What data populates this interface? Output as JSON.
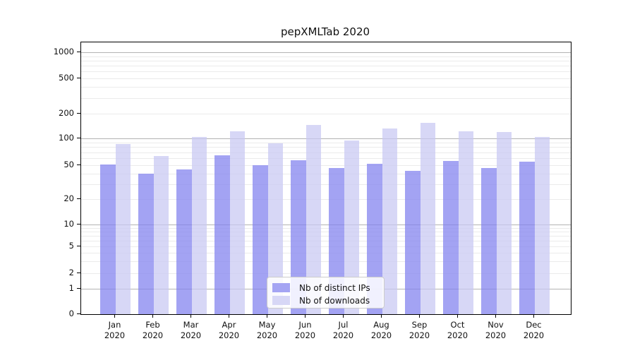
{
  "title": "pepXMLTab 2020",
  "chart_data": {
    "type": "bar",
    "title": "pepXMLTab 2020",
    "categories": [
      "Jan",
      "Feb",
      "Mar",
      "Apr",
      "May",
      "Jun",
      "Jul",
      "Aug",
      "Sep",
      "Oct",
      "Nov",
      "Dec"
    ],
    "x_year": "2020",
    "series": [
      {
        "name": "Nb of distinct IPs",
        "values": [
          51,
          40,
          45,
          65,
          50,
          57,
          46,
          52,
          43,
          56,
          46,
          55
        ],
        "bar_fill": "rgba(128,128,238,0.72)",
        "legend_color": "#a4a4f3"
      },
      {
        "name": "Nb of downloads",
        "values": [
          86,
          63,
          105,
          122,
          88,
          145,
          95,
          132,
          155,
          121,
          119,
          104
        ],
        "bar_fill": "rgba(200,200,243,0.72)",
        "legend_color": "#d7d7f6"
      }
    ],
    "ylabel": "",
    "xlabel": "",
    "y_ticks": [
      0,
      1,
      2,
      5,
      10,
      20,
      50,
      100,
      200,
      500,
      1000
    ],
    "y_scale": "symlog",
    "ylim": [
      0,
      1300
    ],
    "grid": true,
    "major_grid_values": [
      1,
      10,
      100,
      1000
    ],
    "minor_grid_values": [
      2,
      3,
      4,
      5,
      6,
      7,
      8,
      9,
      20,
      30,
      40,
      50,
      60,
      70,
      80,
      90,
      200,
      300,
      400,
      500,
      600,
      700,
      800,
      900
    ],
    "legend_position": "lower center"
  },
  "colors": {
    "major_grid": "#b3b3b3",
    "minor_grid": "#ebebeb",
    "axis": "#000000",
    "background": "#ffffff"
  }
}
